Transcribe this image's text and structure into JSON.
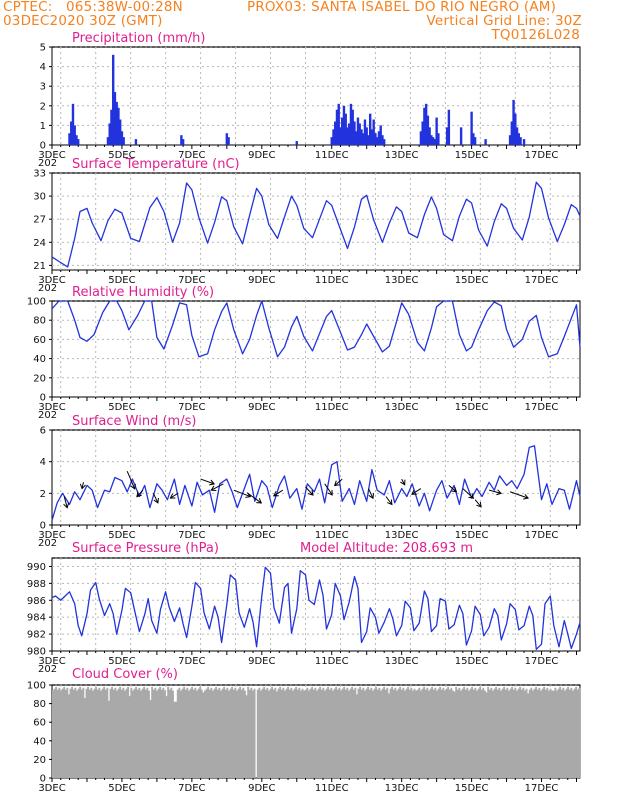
{
  "header": {
    "line1_left": "CPTEC:   065:38W-00:28N",
    "line1_right": "PROX03: SANTA ISABEL DO RIO NEGRO (AM)",
    "line2_left": "03DEC2020 30Z (GMT)",
    "line2_right": "Vertical Grid Line: 30Z",
    "line3_right": "TQ0126L028"
  },
  "colors": {
    "header": "#f58220",
    "panel_title": "#e01f8f",
    "series": "#2233dd",
    "cloud": "#a9a9a9",
    "grid": "#b8b8b8"
  },
  "x_axis": {
    "tick_labels": [
      "3DEC",
      "5DEC",
      "7DEC",
      "9DEC",
      "11DEC",
      "13DEC",
      "15DEC",
      "17DEC"
    ],
    "year_fragment": "202",
    "start_day": 3,
    "end_day": 18.1,
    "labelled_days": [
      3,
      5,
      7,
      9,
      11,
      13,
      15,
      17
    ]
  },
  "chart_data": [
    {
      "type": "bar",
      "title": "Precipitation (mm/h)",
      "ylim": [
        0,
        5
      ],
      "yticks": [
        "0",
        "1",
        "2",
        "3",
        "4",
        "5"
      ],
      "x_unit": "day of December 2020",
      "x": [
        3.5,
        3.55,
        3.6,
        3.65,
        3.7,
        3.75,
        4.6,
        4.65,
        4.7,
        4.75,
        4.8,
        4.85,
        4.9,
        4.95,
        5.0,
        5.05,
        5.4,
        6.7,
        6.75,
        8.0,
        8.05,
        10.0,
        11.0,
        11.05,
        11.1,
        11.15,
        11.2,
        11.25,
        11.3,
        11.35,
        11.4,
        11.45,
        11.5,
        11.55,
        11.6,
        11.65,
        11.7,
        11.75,
        11.8,
        11.85,
        11.9,
        11.95,
        12.0,
        12.05,
        12.1,
        12.15,
        12.2,
        12.25,
        12.3,
        12.35,
        12.4,
        12.45,
        12.5,
        13.55,
        13.6,
        13.65,
        13.7,
        13.75,
        13.8,
        13.85,
        13.9,
        13.95,
        14.0,
        14.05,
        14.3,
        14.35,
        14.7,
        15.0,
        15.05,
        15.1,
        15.4,
        16.1,
        16.15,
        16.2,
        16.25,
        16.3,
        16.35,
        16.4,
        16.5
      ],
      "values": [
        0.6,
        1.2,
        2.1,
        1.0,
        0.5,
        0.3,
        0.4,
        1.1,
        1.8,
        4.6,
        2.7,
        2.2,
        1.9,
        1.3,
        0.7,
        0.4,
        0.3,
        0.5,
        0.3,
        0.6,
        0.4,
        0.2,
        0.4,
        0.8,
        1.2,
        1.8,
        2.1,
        0.9,
        1.4,
        2.0,
        1.6,
        0.9,
        1.1,
        2.1,
        1.8,
        1.2,
        0.7,
        1.4,
        1.1,
        0.8,
        0.6,
        1.3,
        0.9,
        0.5,
        1.6,
        0.8,
        1.3,
        0.6,
        0.4,
        0.7,
        1.0,
        0.5,
        0.3,
        0.7,
        1.2,
        1.9,
        2.1,
        1.5,
        0.9,
        0.5,
        0.4,
        0.3,
        1.4,
        0.6,
        0.9,
        1.8,
        0.9,
        1.7,
        0.6,
        0.4,
        0.3,
        0.5,
        1.2,
        2.3,
        1.6,
        0.9,
        0.6,
        0.4,
        0.3
      ]
    },
    {
      "type": "line",
      "title": "Surface Temperature (nC)",
      "ylim": [
        20.4,
        33
      ],
      "yticks": [
        "21",
        "24",
        "27",
        "30",
        "33"
      ],
      "x_unit": "day of December 2020",
      "x": [
        3.0,
        3.2,
        3.45,
        3.65,
        3.8,
        4.0,
        4.15,
        4.4,
        4.6,
        4.8,
        5.0,
        5.25,
        5.5,
        5.8,
        6.0,
        6.2,
        6.45,
        6.65,
        6.85,
        7.0,
        7.2,
        7.45,
        7.65,
        7.85,
        8.0,
        8.2,
        8.45,
        8.65,
        8.85,
        9.0,
        9.2,
        9.45,
        9.65,
        9.85,
        10.0,
        10.2,
        10.45,
        10.65,
        10.85,
        11.0,
        11.2,
        11.45,
        11.65,
        11.85,
        12.0,
        12.2,
        12.45,
        12.65,
        12.85,
        13.0,
        13.2,
        13.45,
        13.65,
        13.85,
        14.0,
        14.2,
        14.45,
        14.65,
        14.85,
        15.0,
        15.2,
        15.45,
        15.65,
        15.85,
        16.0,
        16.2,
        16.45,
        16.65,
        16.85,
        17.0,
        17.2,
        17.45,
        17.65,
        17.85,
        18.0,
        18.1
      ],
      "values": [
        22.1,
        21.5,
        20.8,
        24.5,
        28.0,
        28.4,
        26.5,
        24.2,
        26.8,
        28.3,
        27.8,
        24.5,
        24.1,
        28.5,
        29.8,
        28.0,
        24.0,
        26.5,
        31.7,
        30.8,
        27.2,
        23.9,
        26.6,
        29.9,
        29.4,
        26.0,
        23.8,
        27.5,
        31.0,
        30.0,
        26.3,
        24.5,
        27.3,
        30.0,
        28.8,
        25.8,
        24.6,
        27.0,
        29.4,
        28.8,
        26.3,
        23.2,
        26.0,
        29.6,
        30.1,
        26.9,
        24.0,
        26.5,
        28.6,
        28.0,
        25.2,
        24.6,
        27.6,
        29.9,
        28.4,
        25.0,
        24.2,
        27.4,
        29.6,
        29.1,
        25.6,
        23.5,
        26.7,
        29.0,
        28.4,
        25.8,
        24.3,
        27.3,
        31.8,
        31.0,
        27.2,
        24.1,
        26.3,
        28.9,
        28.4,
        27.4
      ]
    },
    {
      "type": "line",
      "title": "Relative Humidity (%)",
      "ylim": [
        0,
        100
      ],
      "yticks": [
        "0",
        "20",
        "40",
        "60",
        "80",
        "100"
      ],
      "x_unit": "day of December 2020",
      "x": [
        3.0,
        3.2,
        3.45,
        3.65,
        3.8,
        4.0,
        4.2,
        4.45,
        4.65,
        4.85,
        5.0,
        5.2,
        5.45,
        5.65,
        5.85,
        6.0,
        6.2,
        6.45,
        6.65,
        6.85,
        7.0,
        7.2,
        7.45,
        7.65,
        7.85,
        8.0,
        8.2,
        8.45,
        8.65,
        8.85,
        9.0,
        9.2,
        9.45,
        9.65,
        9.85,
        10.0,
        10.2,
        10.45,
        10.65,
        10.85,
        11.0,
        11.2,
        11.45,
        11.65,
        11.85,
        12.0,
        12.2,
        12.45,
        12.65,
        12.85,
        13.0,
        13.2,
        13.45,
        13.65,
        13.85,
        14.0,
        14.2,
        14.45,
        14.65,
        14.85,
        15.0,
        15.2,
        15.45,
        15.65,
        15.85,
        16.0,
        16.2,
        16.45,
        16.65,
        16.85,
        17.0,
        17.2,
        17.45,
        17.65,
        17.85,
        18.0,
        18.1
      ],
      "values": [
        92,
        100,
        100,
        80,
        62,
        58,
        65,
        88,
        100,
        100,
        90,
        70,
        85,
        100,
        100,
        62,
        50,
        75,
        98,
        96,
        64,
        42,
        45,
        70,
        89,
        98,
        70,
        45,
        60,
        85,
        100,
        72,
        42,
        52,
        73,
        84,
        63,
        48,
        66,
        84,
        90,
        72,
        49,
        52,
        65,
        76,
        63,
        47,
        53,
        78,
        98,
        86,
        57,
        48,
        72,
        94,
        100,
        100,
        65,
        48,
        52,
        70,
        90,
        99,
        95,
        70,
        52,
        60,
        79,
        85,
        62,
        42,
        45,
        63,
        82,
        96,
        52
      ]
    },
    {
      "type": "line",
      "title": "Surface Wind (m/s)",
      "ylim": [
        0,
        6
      ],
      "yticks": [
        "0",
        "2",
        "4",
        "6"
      ],
      "x_unit": "day of December 2020",
      "x": [
        3.0,
        3.15,
        3.3,
        3.5,
        3.65,
        3.8,
        4.0,
        4.15,
        4.3,
        4.5,
        4.65,
        4.8,
        5.0,
        5.15,
        5.3,
        5.5,
        5.65,
        5.8,
        6.0,
        6.15,
        6.3,
        6.5,
        6.65,
        6.8,
        7.0,
        7.15,
        7.3,
        7.5,
        7.65,
        7.8,
        8.0,
        8.15,
        8.3,
        8.5,
        8.65,
        8.8,
        9.0,
        9.15,
        9.3,
        9.5,
        9.65,
        9.8,
        10.0,
        10.15,
        10.3,
        10.5,
        10.65,
        10.8,
        11.0,
        11.15,
        11.3,
        11.5,
        11.65,
        11.8,
        12.0,
        12.15,
        12.3,
        12.5,
        12.65,
        12.8,
        13.0,
        13.15,
        13.3,
        13.5,
        13.65,
        13.8,
        14.0,
        14.15,
        14.3,
        14.5,
        14.65,
        14.8,
        15.0,
        15.15,
        15.3,
        15.5,
        15.65,
        15.8,
        16.0,
        16.15,
        16.3,
        16.5,
        16.65,
        16.8,
        17.0,
        17.15,
        17.3,
        17.5,
        17.65,
        17.8,
        18.0,
        18.1
      ],
      "values": [
        0.3,
        1.4,
        2.0,
        1.3,
        2.1,
        1.6,
        2.5,
        2.2,
        1.1,
        2.2,
        2.1,
        3.0,
        2.8,
        2.1,
        2.9,
        1.8,
        2.5,
        1.1,
        2.6,
        2.2,
        1.6,
        2.9,
        1.3,
        2.5,
        1.2,
        2.7,
        1.9,
        2.2,
        0.8,
        2.6,
        2.9,
        2.1,
        1.1,
        2.3,
        3.2,
        1.5,
        2.8,
        2.4,
        1.1,
        2.5,
        3.1,
        1.7,
        2.3,
        1.0,
        2.6,
        2.1,
        2.9,
        1.4,
        3.8,
        4.0,
        1.5,
        2.3,
        1.3,
        2.8,
        1.5,
        3.5,
        2.2,
        1.9,
        2.8,
        1.4,
        2.3,
        1.8,
        2.6,
        1.2,
        2.0,
        0.9,
        2.2,
        2.8,
        1.7,
        2.5,
        1.3,
        2.9,
        1.7,
        2.3,
        1.8,
        2.7,
        2.2,
        3.1,
        2.5,
        2.8,
        2.3,
        3.2,
        4.9,
        5.0,
        1.6,
        2.6,
        1.3,
        2.3,
        2.2,
        1.0,
        2.8,
        1.8
      ]
    },
    {
      "type": "line",
      "title": "Surface Pressure (hPa)",
      "annotation": "Model Altitude: 208.693  m",
      "ylim": [
        980,
        991
      ],
      "yticks": [
        "980",
        "982",
        "984",
        "986",
        "988",
        "990"
      ],
      "x_unit": "day of December 2020",
      "x": [
        3.0,
        3.1,
        3.25,
        3.35,
        3.5,
        3.65,
        3.75,
        3.85,
        4.0,
        4.1,
        4.25,
        4.35,
        4.5,
        4.65,
        4.75,
        4.85,
        5.0,
        5.1,
        5.25,
        5.35,
        5.5,
        5.65,
        5.75,
        5.85,
        6.0,
        6.1,
        6.25,
        6.35,
        6.5,
        6.65,
        6.75,
        6.85,
        7.0,
        7.1,
        7.25,
        7.35,
        7.5,
        7.65,
        7.75,
        7.85,
        8.0,
        8.1,
        8.25,
        8.35,
        8.5,
        8.65,
        8.75,
        8.85,
        9.0,
        9.1,
        9.25,
        9.35,
        9.5,
        9.65,
        9.75,
        9.85,
        10.0,
        10.1,
        10.25,
        10.35,
        10.5,
        10.65,
        10.75,
        10.85,
        11.0,
        11.1,
        11.25,
        11.35,
        11.5,
        11.65,
        11.75,
        11.85,
        12.0,
        12.1,
        12.25,
        12.35,
        12.5,
        12.65,
        12.75,
        12.85,
        13.0,
        13.1,
        13.25,
        13.35,
        13.5,
        13.65,
        13.75,
        13.85,
        14.0,
        14.1,
        14.25,
        14.35,
        14.5,
        14.65,
        14.75,
        14.85,
        15.0,
        15.1,
        15.25,
        15.35,
        15.5,
        15.65,
        15.75,
        15.85,
        16.0,
        16.1,
        16.25,
        16.35,
        16.5,
        16.65,
        16.75,
        16.85,
        17.0,
        17.1,
        17.25,
        17.35,
        17.5,
        17.65,
        17.75,
        17.85,
        18.0,
        18.1
      ],
      "values": [
        986.3,
        986.5,
        986.0,
        986.4,
        987.0,
        985.6,
        983.0,
        981.8,
        984.4,
        987.2,
        988.1,
        986.2,
        984.2,
        985.6,
        984.4,
        982.0,
        984.8,
        987.4,
        986.9,
        985.0,
        982.3,
        984.3,
        986.2,
        983.6,
        982.1,
        984.9,
        987.0,
        985.2,
        983.5,
        985.1,
        983.2,
        981.6,
        985.3,
        988.1,
        987.4,
        984.5,
        982.6,
        985.3,
        984.0,
        981.0,
        985.5,
        989.0,
        988.4,
        984.5,
        982.8,
        985.0,
        983.4,
        980.5,
        986.5,
        989.9,
        989.2,
        985.1,
        983.3,
        987.5,
        988.0,
        982.1,
        985.0,
        989.5,
        989.0,
        986.0,
        985.5,
        988.4,
        986.6,
        982.6,
        984.3,
        988.0,
        986.5,
        983.7,
        985.8,
        988.8,
        987.4,
        981.0,
        982.3,
        985.1,
        984.0,
        982.1,
        983.4,
        985.0,
        983.8,
        981.8,
        983.0,
        985.9,
        985.1,
        982.4,
        983.3,
        987.1,
        986.2,
        982.3,
        983.0,
        986.2,
        985.9,
        982.6,
        983.1,
        985.4,
        984.4,
        980.7,
        982.4,
        985.3,
        984.3,
        981.8,
        982.8,
        985.0,
        984.2,
        981.3,
        983.2,
        985.6,
        984.9,
        982.5,
        983.0,
        985.3,
        984.2,
        980.2,
        980.8,
        985.6,
        986.5,
        983.0,
        980.5,
        983.6,
        982.0,
        980.3,
        982.0,
        983.4
      ]
    },
    {
      "type": "bar",
      "title": "Cloud Cover (%)",
      "ylim": [
        0,
        100
      ],
      "yticks": [
        "0",
        "20",
        "40",
        "60",
        "80",
        "100"
      ],
      "x_unit": "day of December 2020",
      "x_range": [
        3,
        18.1
      ],
      "typical_value": 96,
      "clear_at": 8.8,
      "dips": [
        [
          3.45,
          90
        ],
        [
          3.9,
          86
        ],
        [
          4.6,
          83
        ],
        [
          5.2,
          88
        ],
        [
          5.8,
          84
        ],
        [
          6.25,
          88
        ],
        [
          6.5,
          82
        ],
        [
          7.3,
          92
        ],
        [
          8.55,
          89
        ],
        [
          9.4,
          93
        ],
        [
          10.2,
          94
        ],
        [
          11.7,
          90
        ],
        [
          12.6,
          91
        ],
        [
          13.4,
          94
        ],
        [
          14.5,
          93
        ],
        [
          15.4,
          92
        ],
        [
          16.6,
          91
        ],
        [
          17.3,
          94
        ]
      ]
    }
  ]
}
